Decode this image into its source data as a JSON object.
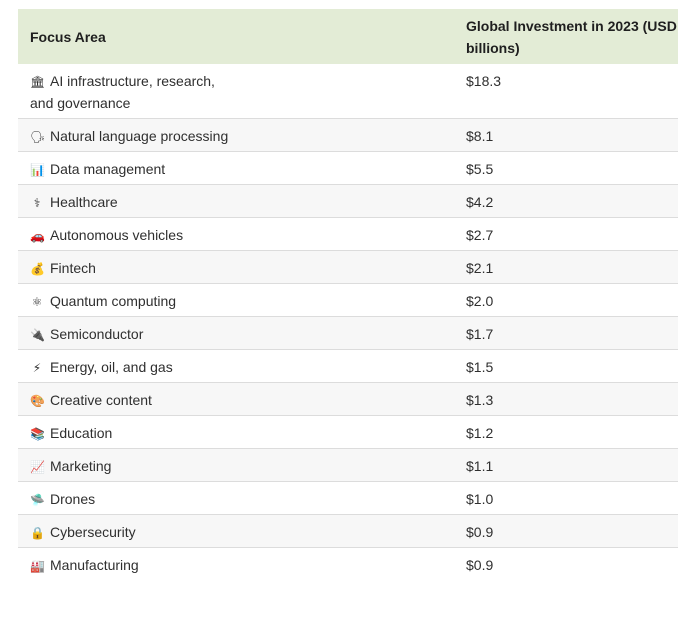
{
  "header": {
    "focus_area": "Focus Area",
    "investment": "Global Investment in 2023 (USD billions)"
  },
  "rows": [
    {
      "icon": "🏛",
      "icon_name": "government-building-icon",
      "label": "AI infrastructure, research, and governance",
      "value": "$18.3"
    },
    {
      "icon": "🗣",
      "icon_name": "speaking-head-icon",
      "label": "Natural language processing",
      "value": "$8.1"
    },
    {
      "icon": "📊",
      "icon_name": "bar-chart-icon",
      "label": "Data management",
      "value": "$5.5"
    },
    {
      "icon": "⚕",
      "icon_name": "medical-icon",
      "label": "Healthcare",
      "value": "$4.2"
    },
    {
      "icon": "🚗",
      "icon_name": "car-icon",
      "label": "Autonomous vehicles",
      "value": "$2.7"
    },
    {
      "icon": "💰",
      "icon_name": "money-bag-icon",
      "label": "Fintech",
      "value": "$2.1"
    },
    {
      "icon": "⚛",
      "icon_name": "atom-icon",
      "label": "Quantum computing",
      "value": "$2.0"
    },
    {
      "icon": "🔌",
      "icon_name": "plug-icon",
      "label": "Semiconductor",
      "value": "$1.7"
    },
    {
      "icon": "⚡",
      "icon_name": "lightning-icon",
      "label": "Energy, oil, and gas",
      "value": "$1.5"
    },
    {
      "icon": "🎨",
      "icon_name": "palette-icon",
      "label": "Creative content",
      "value": "$1.3"
    },
    {
      "icon": "📚",
      "icon_name": "books-icon",
      "label": "Education",
      "value": "$1.2"
    },
    {
      "icon": "📈",
      "icon_name": "trend-up-icon",
      "label": "Marketing",
      "value": "$1.1"
    },
    {
      "icon": "🛸",
      "icon_name": "drone-icon",
      "label": "Drones",
      "value": "$1.0"
    },
    {
      "icon": "🔒",
      "icon_name": "lock-icon",
      "label": "Cybersecurity",
      "value": "$0.9"
    },
    {
      "icon": "🏭",
      "icon_name": "factory-icon",
      "label": "Manufacturing",
      "value": "$0.9"
    }
  ]
}
